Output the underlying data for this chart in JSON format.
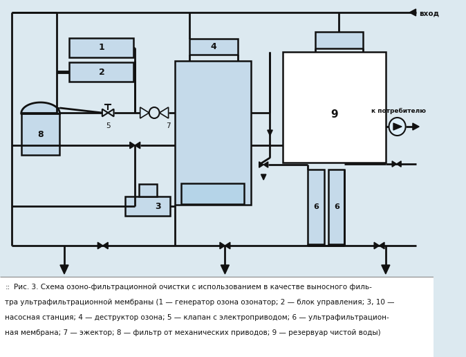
{
  "bg_color": "#dce9f0",
  "line_color": "#111111",
  "box_fill": "#c5daea",
  "box_fill_light": "#ddeef8",
  "caption_lines": [
    "Рис. 3. Схема озоно-фильтрационной очистки с использованием в качестве выносного филь-",
    "тра ультрафильтрационной мембраны (1 — генератор озона озонатор; 2 — блок управления; 3, 10 —",
    "насосная станция; 4 — деструктор озона; 5 — клапан с электроприводом; 6 — ультрафильтрацион-",
    "ная мембрана; 7 — эжектор; 8 — фильтр от механических приводов; 9 — резервуар чистой воды)"
  ]
}
